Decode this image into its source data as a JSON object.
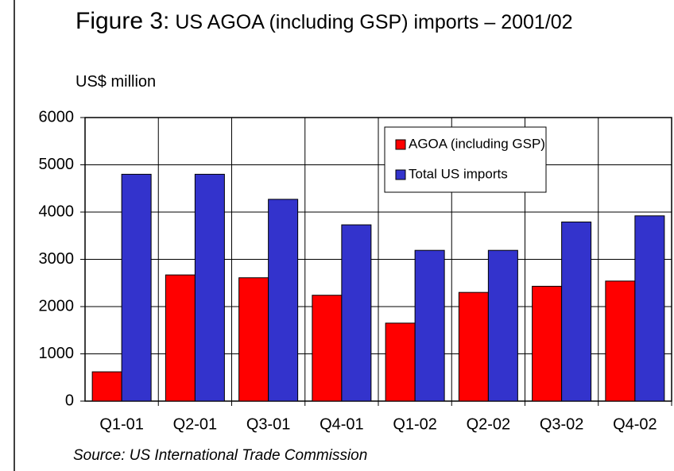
{
  "chart_data": {
    "type": "bar",
    "figure_label": "Figure 3:",
    "title": "US AGOA (including GSP) imports – 2001/02",
    "subtitle": "US$ million",
    "source": "Source: US International Trade Commission",
    "categories": [
      "Q1-01",
      "Q2-01",
      "Q3-01",
      "Q4-01",
      "Q1-02",
      "Q2-02",
      "Q3-02",
      "Q4-02"
    ],
    "series": [
      {
        "name": "AGOA (including GSP)",
        "color": "#ff0000",
        "values": [
          620,
          2670,
          2610,
          2240,
          1650,
          2300,
          2430,
          2540
        ]
      },
      {
        "name": "Total US imports",
        "color": "#3333cc",
        "values": [
          4800,
          4800,
          4270,
          3730,
          3190,
          3190,
          3790,
          3920
        ]
      }
    ],
    "ylim": [
      0,
      6000
    ],
    "yticks": [
      0,
      1000,
      2000,
      3000,
      4000,
      5000,
      6000
    ],
    "grid": true,
    "legend": "top-right"
  }
}
